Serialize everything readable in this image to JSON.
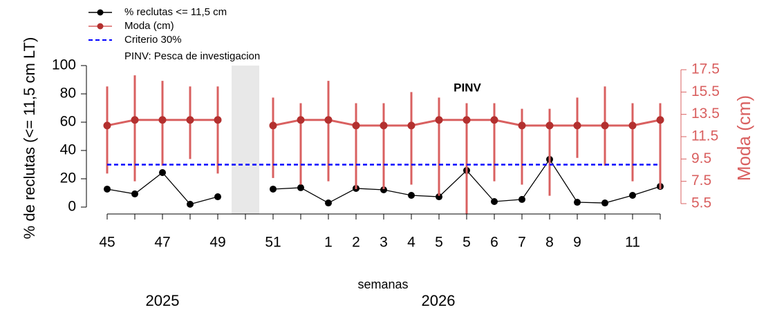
{
  "chart_data": {
    "type": "line",
    "xlabel": "semanas",
    "ylabel": "% de reclutas (<= 11,5 cm LT)",
    "y2label": "Moda (cm)",
    "annotation": "PINV",
    "year_labels": [
      "2025",
      "2026"
    ],
    "categories": [
      "45",
      null,
      "47",
      null,
      "49",
      null,
      "51",
      null,
      "1",
      "2",
      "3",
      "4",
      "5",
      "5",
      "6",
      "7",
      "8",
      "9",
      null,
      "11",
      null
    ],
    "ylim": [
      0,
      100
    ],
    "yticks": [
      0,
      20,
      40,
      60,
      80,
      100
    ],
    "y2lim": [
      5.5,
      17.5
    ],
    "y2ticks": [
      5.5,
      7.5,
      9.5,
      11.5,
      13.5,
      15.5,
      17.5
    ],
    "series": [
      {
        "name": "% reclutas <= 11,5 cm",
        "color": "#000000",
        "values": [
          12.7,
          9.3,
          24.4,
          2.0,
          7.3,
          null,
          12.7,
          13.7,
          2.9,
          13.2,
          12.2,
          8.3,
          7.3,
          25.9,
          3.9,
          5.4,
          33.7,
          3.4,
          2.9,
          8.3,
          14.6
        ]
      },
      {
        "name": "Moda (cm)",
        "color": "#d96060",
        "marker_color": "#b3302f",
        "axis": "y2",
        "values": [
          12.5,
          13,
          13,
          13,
          13,
          null,
          12.5,
          13,
          13,
          12.5,
          12.5,
          12.5,
          13,
          13,
          13,
          12.5,
          12.5,
          12.5,
          12.5,
          12.5,
          13
        ],
        "lower": [
          8.2,
          7.5,
          8.9,
          9.5,
          8.2,
          null,
          7.8,
          7.2,
          7.5,
          6.8,
          6.8,
          7.2,
          6.2,
          4.6,
          7.5,
          7.2,
          6.2,
          9.6,
          8.9,
          7.5,
          6.8
        ],
        "upper": [
          16.0,
          17.0,
          16.5,
          16.0,
          16.0,
          null,
          15.0,
          14.5,
          16.5,
          14.5,
          14.5,
          15.5,
          15.0,
          14.5,
          14.5,
          14.0,
          14.0,
          15.0,
          16.0,
          14.5,
          14.5
        ]
      },
      {
        "name": "Criterio 30%",
        "color": "#0000ff",
        "dash": true,
        "value": 30
      }
    ],
    "legend_note": "PINV: Pesca de investigacion"
  }
}
